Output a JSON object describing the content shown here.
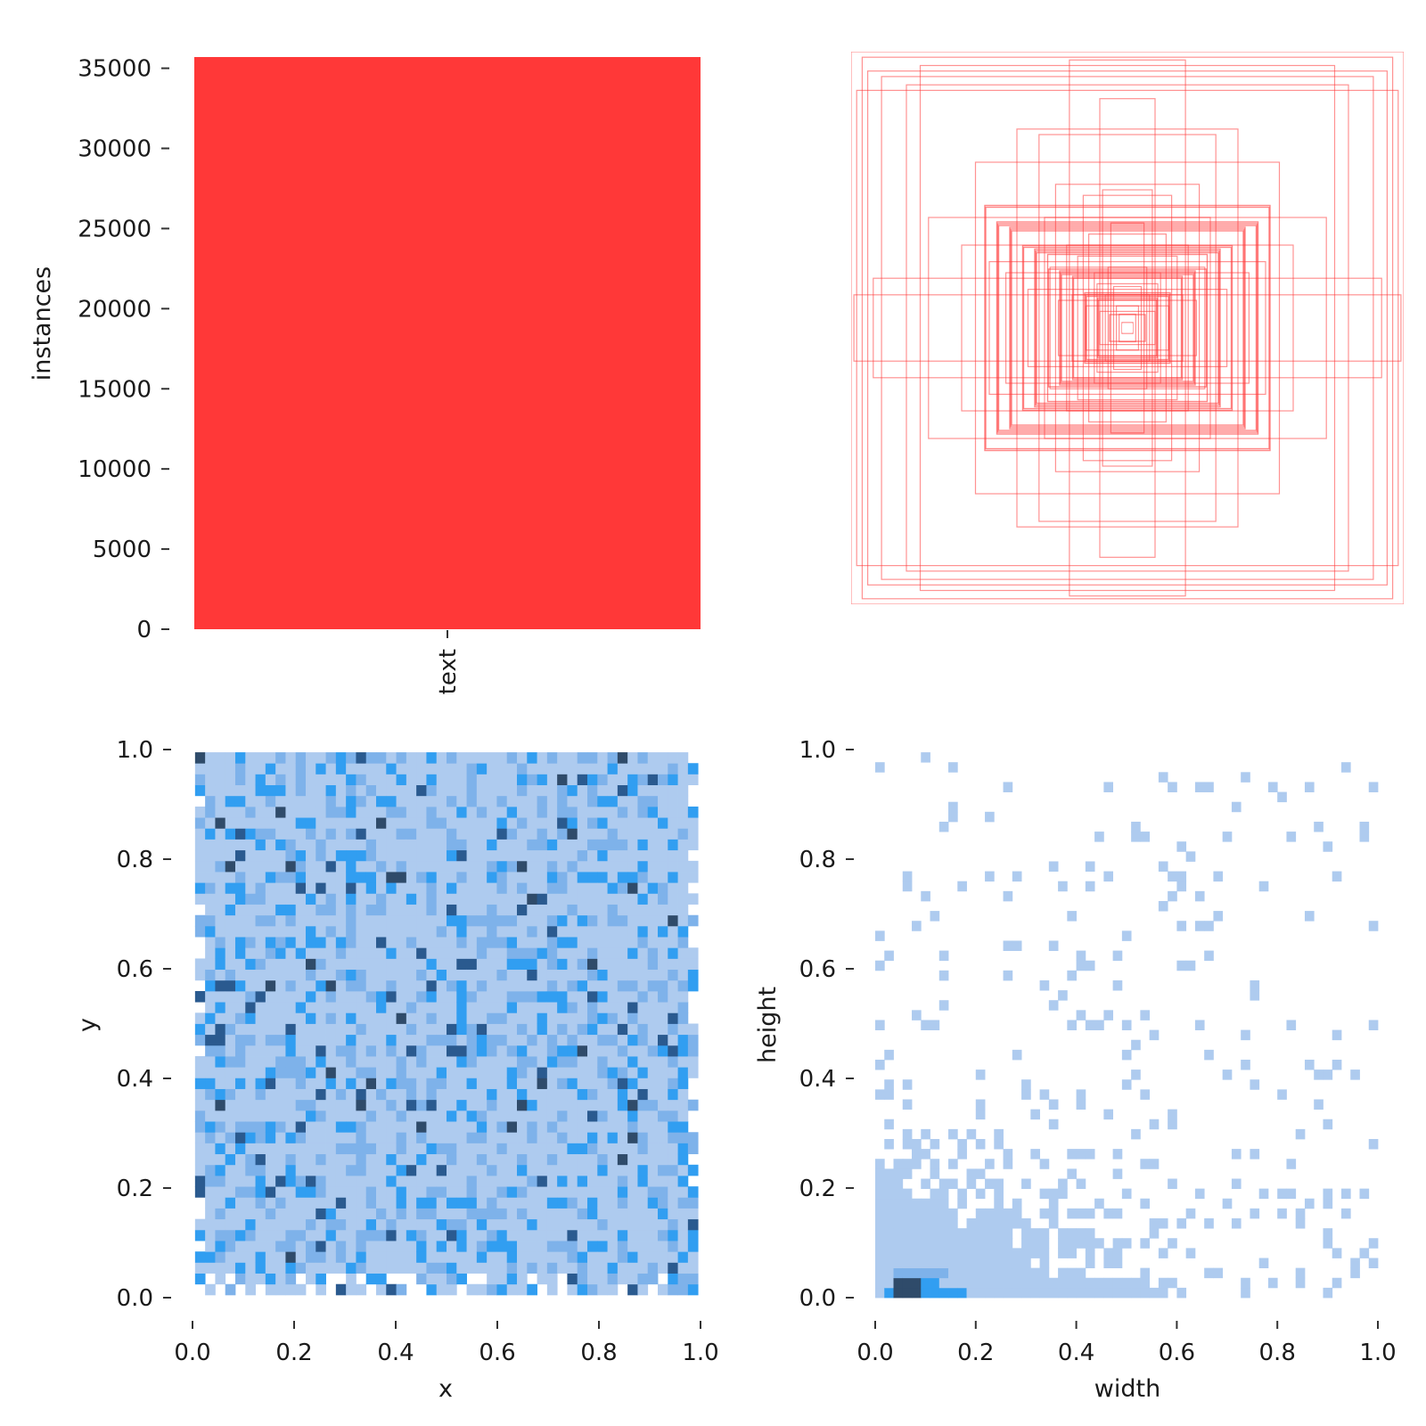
{
  "chart_data": [
    {
      "type": "bar",
      "categories": [
        "text"
      ],
      "values": [
        35700
      ],
      "ylabel": "instances",
      "xlabel": "",
      "ylim": [
        0,
        35700
      ],
      "yticks": [
        0,
        5000,
        10000,
        15000,
        20000,
        25000,
        30000,
        35000
      ],
      "ytick_labels": [
        "0",
        "5000",
        "10000",
        "15000",
        "20000",
        "25000",
        "30000",
        "35000"
      ],
      "grid": false,
      "color": "#ff3838"
    },
    {
      "type": "scatter",
      "description_kind": "box-outlines",
      "xlim": [
        0,
        1
      ],
      "ylim": [
        0,
        1
      ],
      "color": "#ff3838",
      "boxes": [
        {
          "w": 1.0,
          "h": 1.0
        },
        {
          "w": 0.96,
          "h": 0.98
        },
        {
          "w": 0.94,
          "h": 0.93
        },
        {
          "w": 0.89,
          "h": 0.91
        },
        {
          "w": 0.98,
          "h": 0.86
        },
        {
          "w": 0.8,
          "h": 0.88
        },
        {
          "w": 0.75,
          "h": 0.95
        },
        {
          "w": 0.21,
          "h": 0.97
        },
        {
          "w": 0.1,
          "h": 0.83
        },
        {
          "w": 0.4,
          "h": 0.72
        },
        {
          "w": 0.32,
          "h": 0.7
        },
        {
          "w": 0.72,
          "h": 0.4
        },
        {
          "w": 0.99,
          "h": 0.12
        },
        {
          "w": 0.92,
          "h": 0.18
        },
        {
          "w": 0.6,
          "h": 0.3
        },
        {
          "w": 0.55,
          "h": 0.6
        },
        {
          "w": 0.26,
          "h": 0.52
        },
        {
          "w": 0.5,
          "h": 0.24
        },
        {
          "w": 0.16,
          "h": 0.48
        },
        {
          "w": 0.44,
          "h": 0.2
        },
        {
          "w": 0.3,
          "h": 0.4
        },
        {
          "w": 0.14,
          "h": 0.34
        },
        {
          "w": 0.36,
          "h": 0.14
        },
        {
          "w": 0.22,
          "h": 0.3
        },
        {
          "w": 0.09,
          "h": 0.5
        },
        {
          "w": 0.12,
          "h": 0.2
        },
        {
          "w": 0.2,
          "h": 0.12
        },
        {
          "w": 0.06,
          "h": 0.38
        },
        {
          "w": 0.07,
          "h": 0.22
        },
        {
          "w": 0.05,
          "h": 0.15
        },
        {
          "w": 0.25,
          "h": 0.1
        },
        {
          "w": 0.18,
          "h": 0.26
        },
        {
          "w": 0.28,
          "h": 0.22
        },
        {
          "w": 0.11,
          "h": 0.16
        },
        {
          "w": 0.08,
          "h": 0.12
        },
        {
          "w": 0.04,
          "h": 0.08
        },
        {
          "w": 0.15,
          "h": 0.08
        },
        {
          "w": 0.1,
          "h": 0.06
        },
        {
          "w": 0.03,
          "h": 0.05
        },
        {
          "w": 0.02,
          "h": 0.02
        }
      ]
    },
    {
      "type": "heatmap",
      "xlabel": "x",
      "ylabel": "y",
      "xlim": [
        0,
        1
      ],
      "ylim": [
        0,
        1
      ],
      "xticks": [
        0.0,
        0.2,
        0.4,
        0.6,
        0.8,
        1.0
      ],
      "xtick_labels": [
        "0.0",
        "0.2",
        "0.4",
        "0.6",
        "0.8",
        "1.0"
      ],
      "yticks": [
        0.0,
        0.2,
        0.4,
        0.6,
        0.8,
        1.0
      ],
      "ytick_labels": [
        "0.0",
        "0.2",
        "0.4",
        "0.6",
        "0.8",
        "1.0"
      ],
      "bins": 50,
      "extent": {
        "x": [
          0.005,
          0.995
        ],
        "y": [
          0.005,
          0.995
        ]
      },
      "colors": [
        "#aecbef",
        "#7eb2ea",
        "#319ef1",
        "#2a5a8f",
        "#2f4b6a"
      ]
    },
    {
      "type": "heatmap",
      "xlabel": "width",
      "ylabel": "height",
      "xlim": [
        0,
        1
      ],
      "ylim": [
        0,
        1
      ],
      "xticks": [
        0.0,
        0.2,
        0.4,
        0.6,
        0.8,
        1.0
      ],
      "xtick_labels": [
        "0.0",
        "0.2",
        "0.4",
        "0.6",
        "0.8",
        "1.0"
      ],
      "yticks": [
        0.0,
        0.2,
        0.4,
        0.6,
        0.8,
        1.0
      ],
      "ytick_labels": [
        "0.0",
        "0.2",
        "0.4",
        "0.6",
        "0.8",
        "1.0"
      ],
      "bins": 55,
      "extent": {
        "x": [
          0.0,
          1.0
        ],
        "y": [
          0.0,
          0.995
        ]
      },
      "colors": [
        "#aecbef",
        "#7eb2ea",
        "#319ef1",
        "#2a5a8f",
        "#2f4b6a"
      ]
    }
  ]
}
